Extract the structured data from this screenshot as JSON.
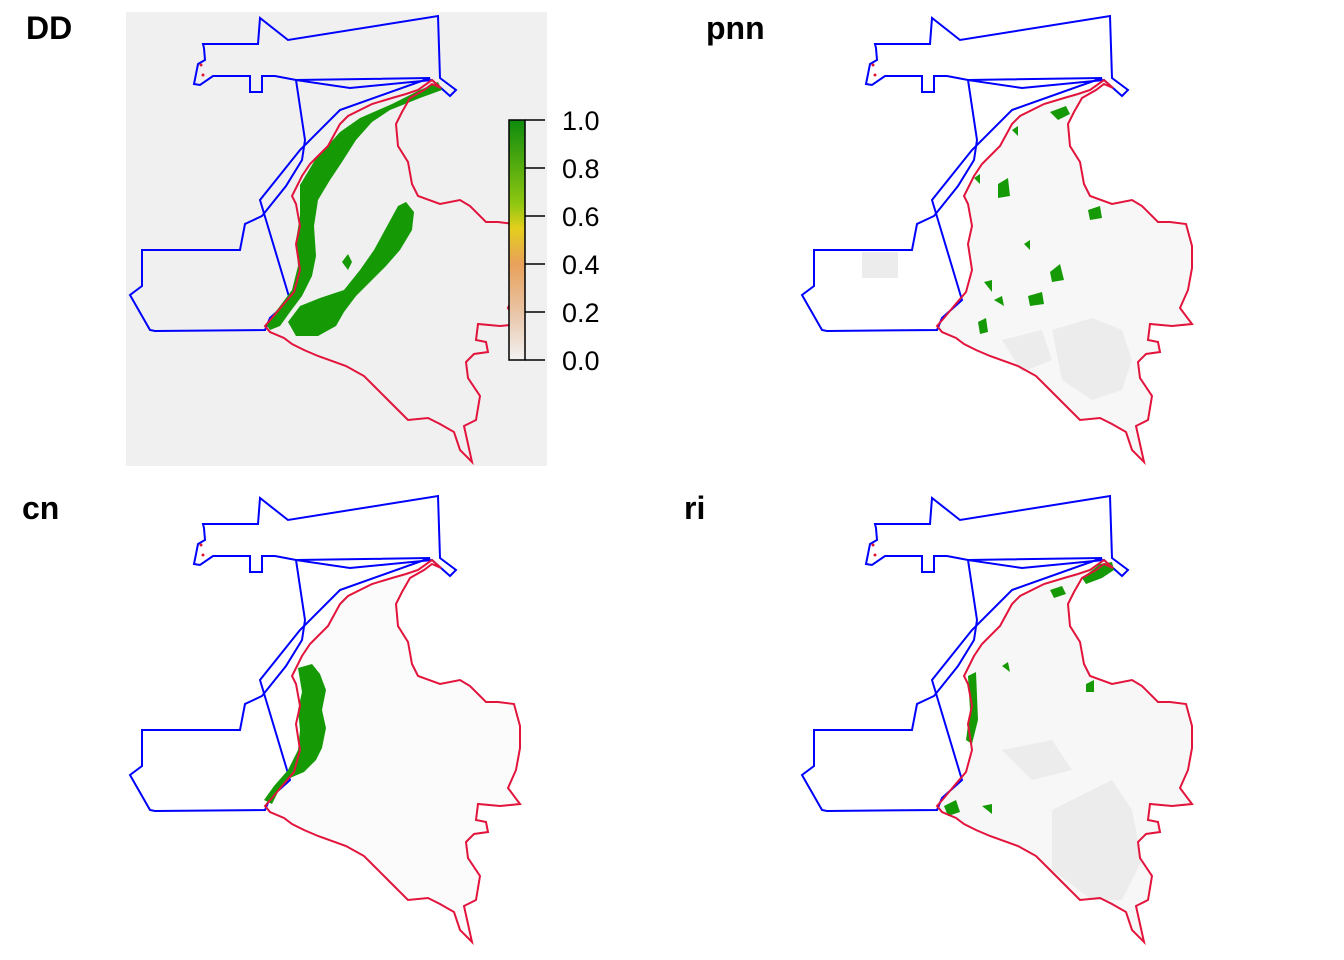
{
  "panels": [
    {
      "id": "DD",
      "title": "DD"
    },
    {
      "id": "pnn",
      "title": "pnn"
    },
    {
      "id": "cn",
      "title": "cn"
    },
    {
      "id": "ri",
      "title": "ri"
    }
  ],
  "legend": {
    "ticks": [
      "0.0",
      "0.2",
      "0.4",
      "0.6",
      "0.8",
      "1.0"
    ],
    "range": [
      0,
      1
    ],
    "colors": [
      "#f2f2f2",
      "#e9c4a6",
      "#e8a15a",
      "#e3cf1c",
      "#8fc710",
      "#0e8b0e"
    ]
  },
  "colors": {
    "boundary_outer": "#0000ff",
    "boundary_country": "#e2143c",
    "suitable": "#159a06",
    "background_area": "#f0f0f0",
    "faint_area": "#ececec"
  }
}
